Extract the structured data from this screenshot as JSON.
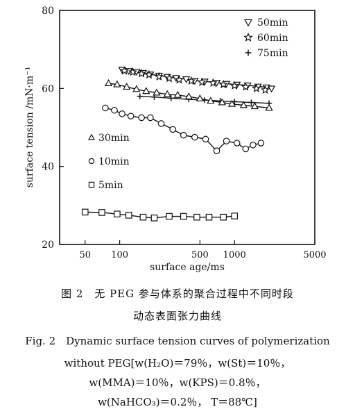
{
  "chart_data": {
    "type": "scatter",
    "xlabel": "surface age/ms",
    "ylabel": "surface tension /mN·m⁻¹",
    "x_scale": "log",
    "xlim": [
      30,
      5000
    ],
    "ylim": [
      20,
      80
    ],
    "x_ticks": [
      50,
      100,
      500,
      1000,
      5000
    ],
    "x_tick_labels": [
      "50",
      "100",
      "500",
      "1000",
      "5000"
    ],
    "y_ticks": [
      20,
      40,
      60,
      80
    ],
    "y_tick_labels": [
      "20",
      "40",
      "60",
      "80"
    ],
    "grid": false,
    "series": [
      {
        "name": "50min",
        "marker": "triangle-down",
        "line": true,
        "x": [
          105,
          120,
          140,
          160,
          185,
          220,
          260,
          310,
          380,
          450,
          550,
          700,
          850,
          1050,
          1300,
          1600,
          1900,
          2100
        ],
        "y": [
          64.8,
          64.5,
          64.3,
          64.0,
          63.6,
          63.3,
          63.0,
          62.7,
          62.4,
          62.0,
          61.8,
          61.5,
          61.2,
          61.0,
          60.8,
          60.5,
          60.3,
          60.0
        ]
      },
      {
        "name": "60min",
        "marker": "star",
        "line": false,
        "x": [
          110,
          130,
          155,
          180,
          220,
          270,
          330,
          420,
          520,
          650,
          800,
          1000,
          1250,
          1550,
          1850
        ],
        "y": [
          64.5,
          64.2,
          63.8,
          63.5,
          63.0,
          62.6,
          62.2,
          61.9,
          61.6,
          61.4,
          61.0,
          60.7,
          60.4,
          60.0,
          59.6
        ]
      },
      {
        "name": "75min",
        "marker": "plus",
        "line": true,
        "x": [
          150,
          200,
          280,
          400,
          550,
          750,
          1000,
          1400,
          2000
        ],
        "y": [
          58.0,
          57.8,
          57.5,
          57.2,
          57.0,
          56.8,
          56.6,
          56.4,
          56.2
        ]
      },
      {
        "name": "30min",
        "marker": "triangle-up",
        "line": true,
        "x": [
          80,
          95,
          115,
          140,
          170,
          210,
          260,
          320,
          400,
          500,
          620,
          780,
          950,
          1200,
          1500,
          2000
        ],
        "y": [
          61.3,
          61.0,
          60.4,
          59.8,
          59.3,
          58.9,
          58.5,
          58.3,
          57.9,
          57.4,
          56.8,
          56.4,
          56.0,
          55.7,
          55.4,
          55.0
        ]
      },
      {
        "name": "10min",
        "marker": "circle",
        "line": true,
        "x": [
          75,
          90,
          105,
          125,
          155,
          185,
          230,
          290,
          360,
          450,
          560,
          700,
          850,
          1050,
          1250,
          1450,
          1700
        ],
        "y": [
          55.0,
          54.4,
          53.5,
          52.9,
          52.5,
          52.5,
          51.0,
          49.5,
          48.0,
          47.5,
          47.0,
          44.0,
          46.5,
          46.0,
          44.5,
          45.5,
          46.0
        ]
      },
      {
        "name": "5min",
        "marker": "square",
        "line": true,
        "x": [
          50,
          70,
          95,
          120,
          160,
          200,
          270,
          360,
          470,
          600,
          800,
          1000
        ],
        "y": [
          28.3,
          28.2,
          27.8,
          27.5,
          27.0,
          26.8,
          27.2,
          27.2,
          27.0,
          27.0,
          27.0,
          27.3
        ]
      }
    ],
    "legend": [
      {
        "label": "50min",
        "marker": "triangle-down",
        "placement": "top-right"
      },
      {
        "label": "60min",
        "marker": "star",
        "placement": "top-right"
      },
      {
        "label": "75min",
        "marker": "plus",
        "placement": "top-right"
      },
      {
        "label": "30min",
        "marker": "triangle-up",
        "placement": "left"
      },
      {
        "label": "10min",
        "marker": "circle",
        "placement": "left"
      },
      {
        "label": "5min",
        "marker": "square",
        "placement": "left"
      }
    ]
  },
  "caption": {
    "zh_line1": "图 2　无 PEG 参与体系的聚合过程中不同时段",
    "zh_line2": "动态表面张力曲线",
    "en_line1": "Fig. 2　Dynamic surface tension curves of polymerization",
    "en_line2": "without PEG[w(H₂O)＝79％，w(St)＝10％，",
    "en_line3": "w(MMA)＝10％，w(KPS)＝0.8％，",
    "en_line4": "w(NaHCO₃)＝0.2％， T＝88℃]"
  }
}
